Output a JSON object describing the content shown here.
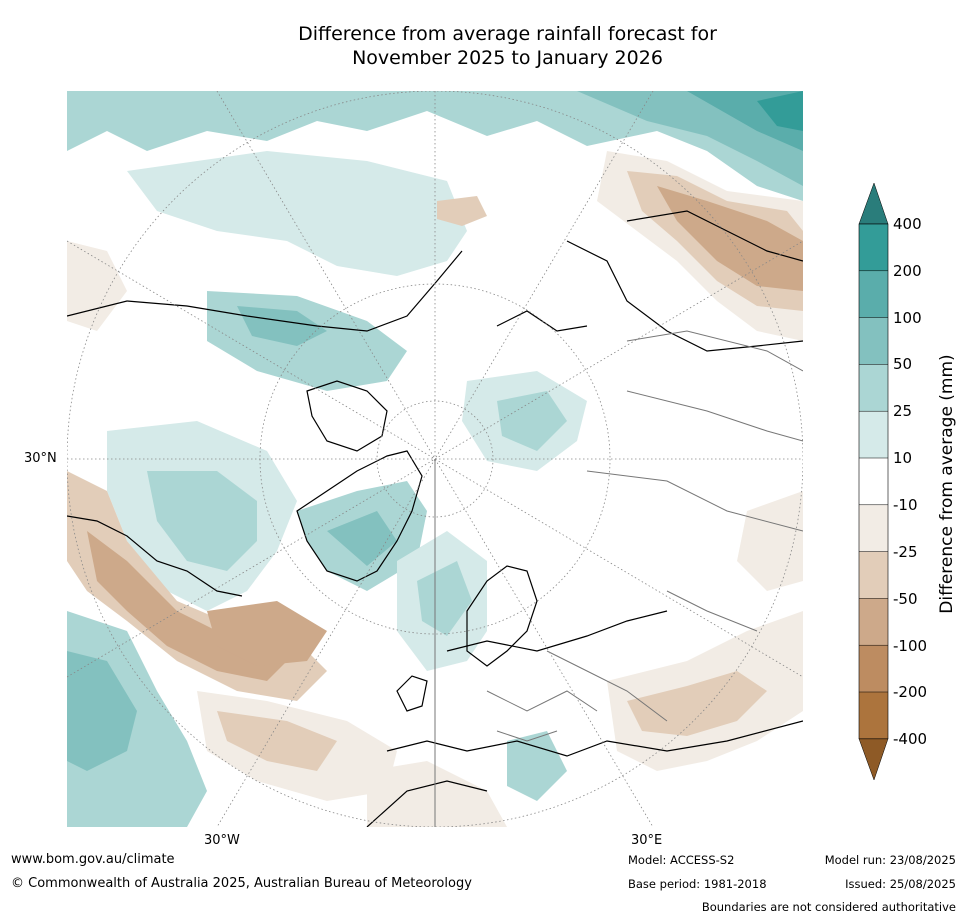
{
  "title": {
    "line1": "Difference from average rainfall forecast for",
    "line2": "November 2025 to January 2026"
  },
  "map": {
    "projection": "north polar stereographic",
    "labels": {
      "lat_30n": "30°N",
      "lon_30w": "30°W",
      "lon_30e": "30°E"
    }
  },
  "colorbar": {
    "label": "Difference from average (mm)",
    "ticks": [
      "400",
      "200",
      "100",
      "50",
      "25",
      "10",
      "-10",
      "-25",
      "-50",
      "-100",
      "-200",
      "-400"
    ],
    "colors": {
      "over": "#2a7d7b",
      "wet_400": "#339c98",
      "wet_200": "#5aadab",
      "wet_100": "#83c1bf",
      "wet_50": "#abd6d4",
      "wet_25": "#d5eae9",
      "neutral": "#ffffff",
      "dry_25": "#f2ece5",
      "dry_50": "#e2cdb9",
      "dry_100": "#cda98a",
      "dry_200": "#bd8c61",
      "dry_400": "#ac743d",
      "under": "#8e5a26"
    }
  },
  "footer": {
    "website": "www.bom.gov.au/climate",
    "copyright": "© Commonwealth of Australia 2025, Australian Bureau of Meteorology",
    "model": "Model: ACCESS-S2",
    "base_period": "Base period: 1981-2018",
    "model_run": "Model run: 23/08/2025",
    "issued": "Issued: 25/08/2025",
    "disclaimer": "Boundaries are not considered authoritative"
  }
}
